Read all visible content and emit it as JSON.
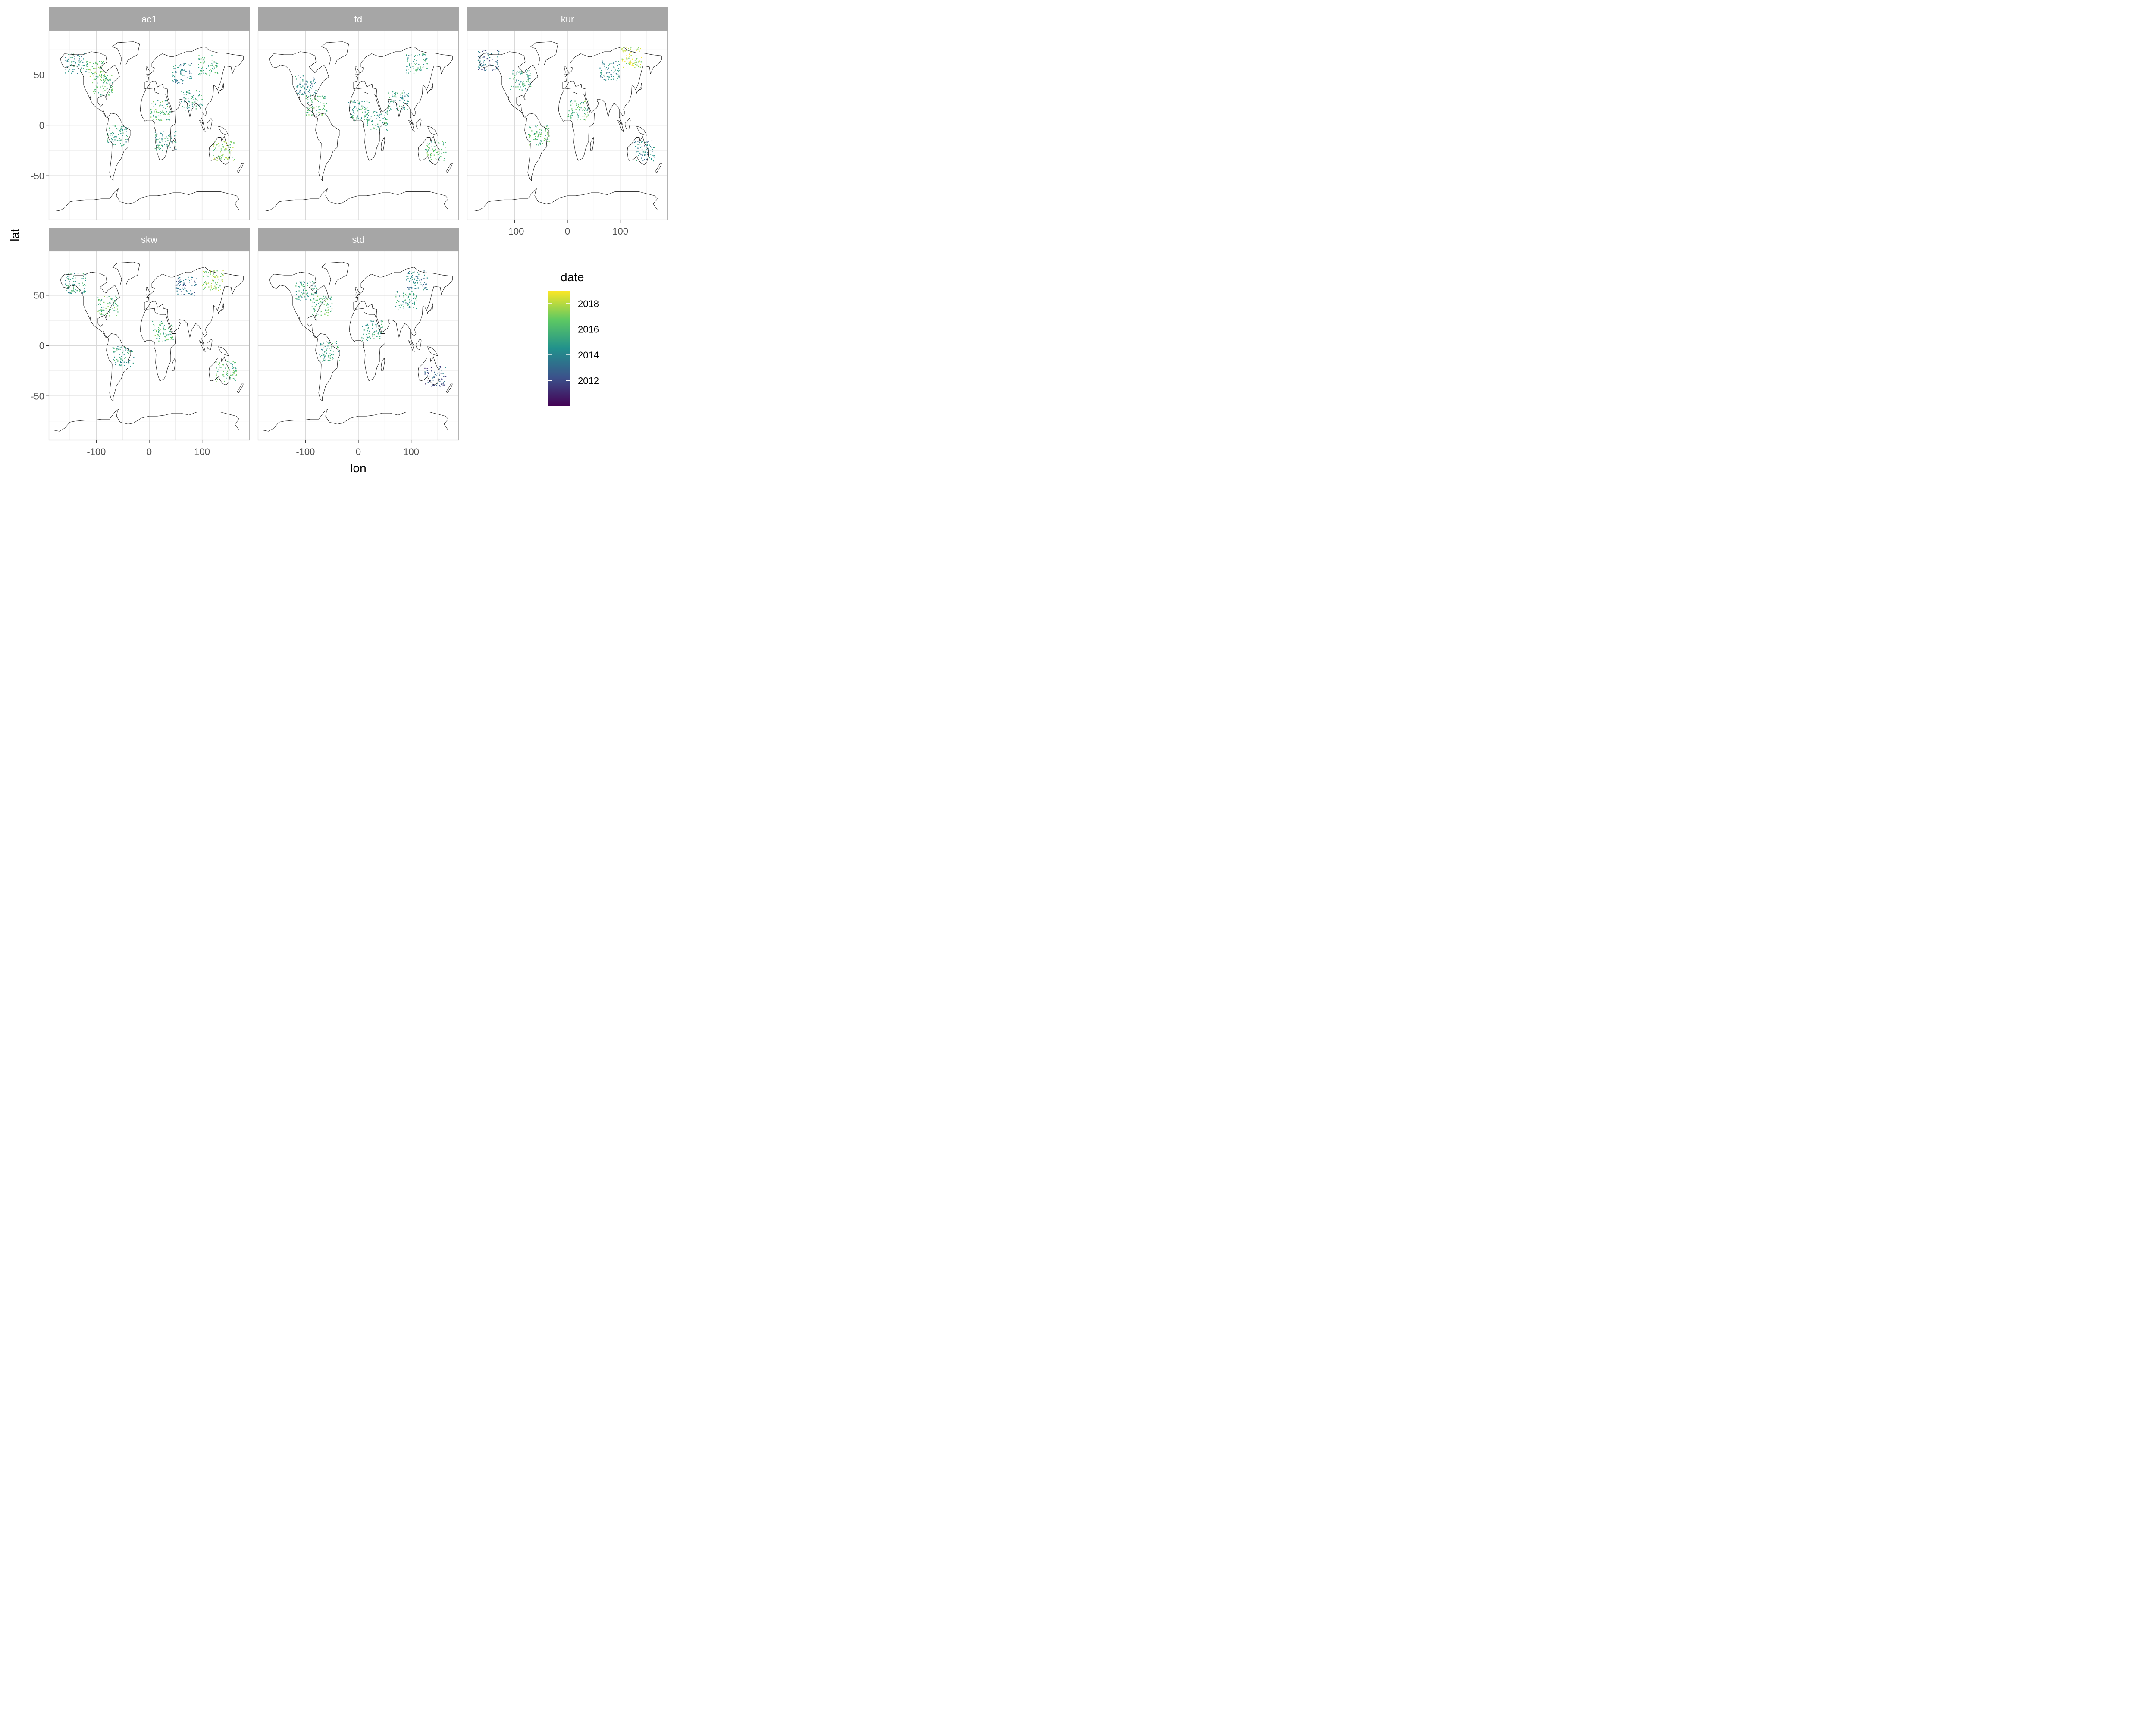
{
  "chart_data": {
    "type": "scatter",
    "facet_layout": "wrap",
    "panels": [
      {
        "name": "ac1",
        "regions": [
          {
            "lon": -140,
            "lat": 62,
            "date": 2014.5
          },
          {
            "lon": -100,
            "lat": 55,
            "date": 2016.5
          },
          {
            "lon": -90,
            "lat": 40,
            "date": 2016
          },
          {
            "lon": -60,
            "lat": -10,
            "date": 2015
          },
          {
            "lon": 20,
            "lat": 15,
            "date": 2016
          },
          {
            "lon": 30,
            "lat": -15,
            "date": 2015
          },
          {
            "lon": 60,
            "lat": 52,
            "date": 2014
          },
          {
            "lon": 80,
            "lat": 25,
            "date": 2015
          },
          {
            "lon": 110,
            "lat": 60,
            "date": 2016
          },
          {
            "lon": 140,
            "lat": -25,
            "date": 2017
          }
        ]
      },
      {
        "name": "fd",
        "regions": [
          {
            "lon": -100,
            "lat": 40,
            "date": 2014
          },
          {
            "lon": -80,
            "lat": 20,
            "date": 2016
          },
          {
            "lon": 0,
            "lat": 15,
            "date": 2015
          },
          {
            "lon": 35,
            "lat": 5,
            "date": 2015
          },
          {
            "lon": 75,
            "lat": 25,
            "date": 2015
          },
          {
            "lon": 110,
            "lat": 62,
            "date": 2015
          },
          {
            "lon": 145,
            "lat": -25,
            "date": 2016
          }
        ]
      },
      {
        "name": "kur",
        "regions": [
          {
            "lon": -150,
            "lat": 65,
            "date": 2013
          },
          {
            "lon": -90,
            "lat": 45,
            "date": 2015
          },
          {
            "lon": -55,
            "lat": -10,
            "date": 2016
          },
          {
            "lon": 20,
            "lat": 15,
            "date": 2016
          },
          {
            "lon": 80,
            "lat": 55,
            "date": 2014
          },
          {
            "lon": 120,
            "lat": 68,
            "date": 2018
          },
          {
            "lon": 145,
            "lat": -25,
            "date": 2014
          }
        ]
      },
      {
        "name": "skw",
        "regions": [
          {
            "lon": -140,
            "lat": 62,
            "date": 2015
          },
          {
            "lon": -80,
            "lat": 40,
            "date": 2016
          },
          {
            "lon": -50,
            "lat": -10,
            "date": 2015
          },
          {
            "lon": 25,
            "lat": 15,
            "date": 2016
          },
          {
            "lon": 70,
            "lat": 60,
            "date": 2013
          },
          {
            "lon": 120,
            "lat": 65,
            "date": 2017
          },
          {
            "lon": 145,
            "lat": -25,
            "date": 2016
          }
        ]
      },
      {
        "name": "std",
        "regions": [
          {
            "lon": -100,
            "lat": 55,
            "date": 2015
          },
          {
            "lon": -70,
            "lat": 40,
            "date": 2016
          },
          {
            "lon": -55,
            "lat": -5,
            "date": 2015
          },
          {
            "lon": 25,
            "lat": 15,
            "date": 2015
          },
          {
            "lon": 90,
            "lat": 45,
            "date": 2015
          },
          {
            "lon": 110,
            "lat": 65,
            "date": 2014
          },
          {
            "lon": 145,
            "lat": -30,
            "date": 2012.5
          }
        ]
      }
    ],
    "xlabel": "lon",
    "ylabel": "lat",
    "xlim": [
      -190,
      190
    ],
    "ylim": [
      -94,
      94
    ],
    "xticks": [
      -100,
      0,
      100
    ],
    "xtick_labels": [
      "-100",
      "0",
      "100"
    ],
    "yticks": [
      50,
      0,
      -50
    ],
    "ytick_labels": [
      "50",
      "0",
      "-50"
    ],
    "grid": true,
    "legend": {
      "title": "date",
      "position": "right",
      "range": [
        2010,
        2019
      ],
      "ticks": [
        2018,
        2016,
        2014,
        2012
      ],
      "tick_labels": [
        "2018",
        "2016",
        "2014",
        "2012"
      ],
      "palette": "viridis"
    }
  },
  "colors": {
    "strip": "#a6a6a6",
    "panel_border": "#b3b3b3",
    "grid_major": "#d9d9d9",
    "grid_minor": "#ebebeb",
    "coastline": "#1a1a1a",
    "viridis": [
      "#440154",
      "#3b528b",
      "#21918c",
      "#5ec962",
      "#fde725"
    ]
  }
}
